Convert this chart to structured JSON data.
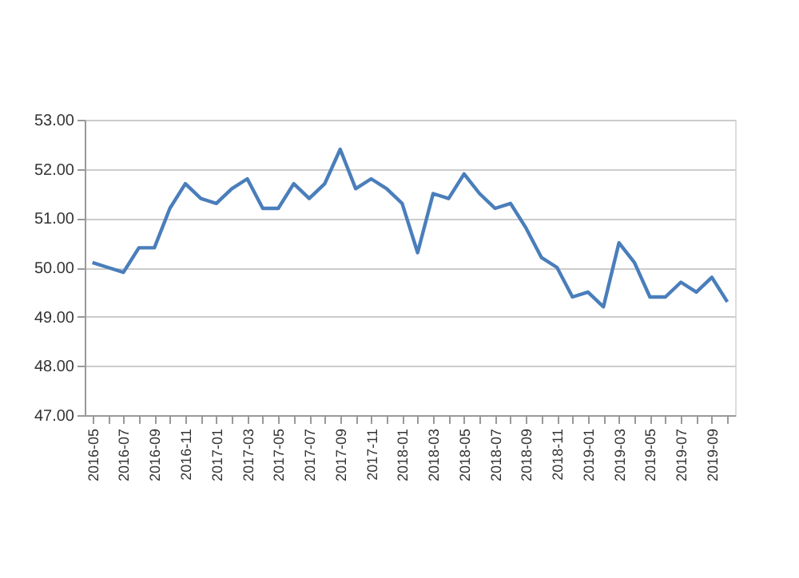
{
  "chart_data": {
    "type": "line",
    "categories": [
      "2016-05",
      null,
      "2016-07",
      null,
      "2016-09",
      null,
      "2016-11",
      null,
      "2017-01",
      null,
      "2017-03",
      null,
      "2017-05",
      null,
      "2017-07",
      null,
      "2017-09",
      null,
      "2017-11",
      null,
      "2018-01",
      null,
      "2018-03",
      null,
      "2018-05",
      null,
      "2018-07",
      null,
      "2018-09",
      null,
      "2018-11",
      null,
      "2019-01",
      null,
      "2019-03",
      null,
      "2019-05",
      null,
      "2019-07",
      null,
      "2019-09",
      null
    ],
    "series": [
      {
        "color": "#4a7ebb",
        "values": [
          50.1,
          50.0,
          49.9,
          50.4,
          50.4,
          51.2,
          51.7,
          51.4,
          51.3,
          51.6,
          51.8,
          51.2,
          51.2,
          51.7,
          51.4,
          51.7,
          52.4,
          51.6,
          51.8,
          51.6,
          51.3,
          50.3,
          51.5,
          51.4,
          51.9,
          51.5,
          51.2,
          51.3,
          50.8,
          50.2,
          50.0,
          49.4,
          49.5,
          49.2,
          50.5,
          50.1,
          49.4,
          49.4,
          49.7,
          49.5,
          49.8,
          49.3
        ]
      }
    ],
    "ylim": [
      47,
      53
    ],
    "yticks": [
      {
        "value": 47,
        "label": "47.00"
      },
      {
        "value": 48,
        "label": "48.00"
      },
      {
        "value": 49,
        "label": "49.00"
      },
      {
        "value": 50,
        "label": "50.00"
      },
      {
        "value": 51,
        "label": "51.00"
      },
      {
        "value": 52,
        "label": "52.00"
      },
      {
        "value": 53,
        "label": "53.00"
      }
    ],
    "grid": "y",
    "marker": "none",
    "line_style": "solid"
  }
}
